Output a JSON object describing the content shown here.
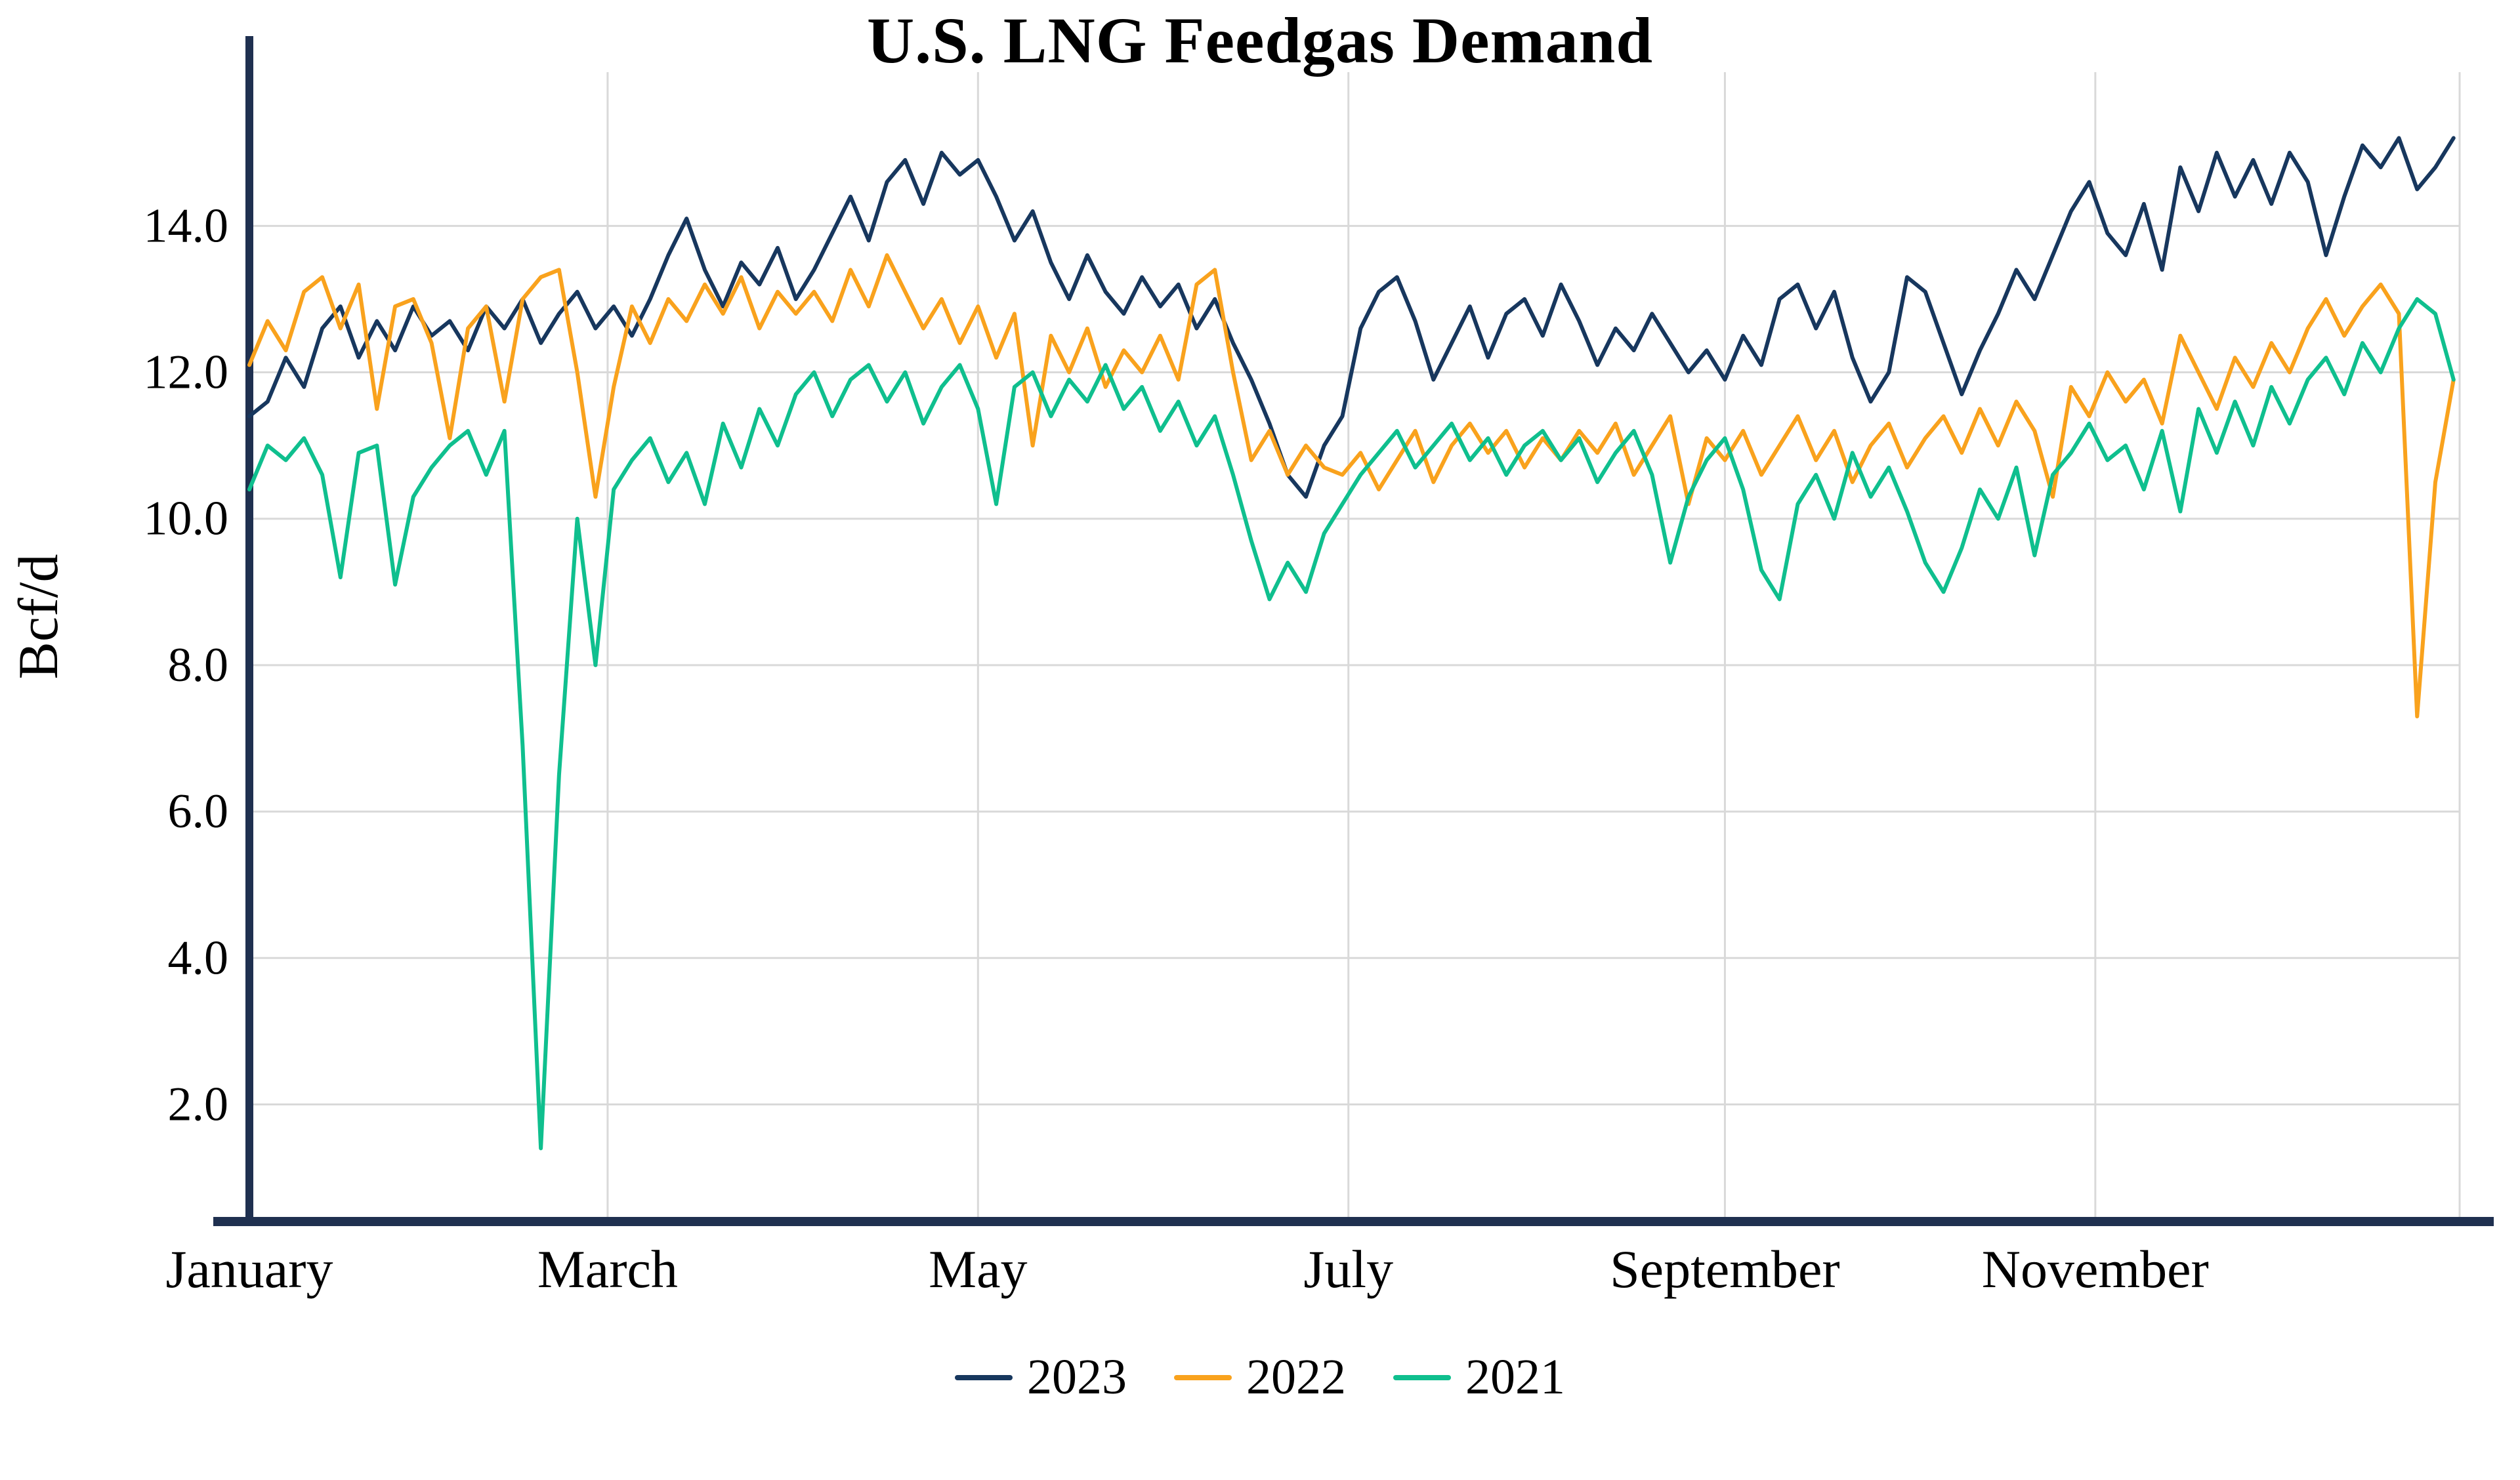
{
  "chart_data": {
    "type": "line",
    "title": "U.S. LNG Feedgas Demand",
    "xlabel": "",
    "ylabel": "Bcf/d",
    "x_unit": "day_of_year",
    "x_step_days": 3,
    "xlim_days": [
      0,
      364
    ],
    "ylim": [
      0.4,
      16.1
    ],
    "yticks": [
      2.0,
      4.0,
      6.0,
      8.0,
      10.0,
      12.0,
      14.0
    ],
    "ytick_labels": [
      "2.0",
      "4.0",
      "6.0",
      "8.0",
      "10.0",
      "12.0",
      "14.0"
    ],
    "x_month_ticks": [
      {
        "label": "January",
        "day": 0
      },
      {
        "label": "March",
        "day": 59
      },
      {
        "label": "May",
        "day": 120
      },
      {
        "label": "July",
        "day": 181
      },
      {
        "label": "September",
        "day": 243
      },
      {
        "label": "November",
        "day": 304
      }
    ],
    "x_gridline_days": [
      59,
      120,
      181,
      243,
      304,
      364
    ],
    "grid": true,
    "legend_position": "bottom",
    "axis_color": "#1f3050",
    "grid_color": "#d9d9d9",
    "series": [
      {
        "name": "2023",
        "color": "#17375e",
        "values": [
          11.4,
          11.6,
          12.2,
          11.8,
          12.6,
          12.9,
          12.2,
          12.7,
          12.3,
          12.9,
          12.5,
          12.7,
          12.3,
          12.9,
          12.6,
          13.0,
          12.4,
          12.8,
          13.1,
          12.6,
          12.9,
          12.5,
          13.0,
          13.6,
          14.1,
          13.4,
          12.9,
          13.5,
          13.2,
          13.7,
          13.0,
          13.4,
          13.9,
          14.4,
          13.8,
          14.6,
          14.9,
          14.3,
          15.0,
          14.7,
          14.9,
          14.4,
          13.8,
          14.2,
          13.5,
          13.0,
          13.6,
          13.1,
          12.8,
          13.3,
          12.9,
          13.2,
          12.6,
          13.0,
          12.4,
          11.9,
          11.3,
          10.6,
          10.3,
          11.0,
          11.4,
          12.6,
          13.1,
          13.3,
          12.7,
          11.9,
          12.4,
          12.9,
          12.2,
          12.8,
          13.0,
          12.5,
          13.2,
          12.7,
          12.1,
          12.6,
          12.3,
          12.8,
          12.4,
          12.0,
          12.3,
          11.9,
          12.5,
          12.1,
          13.0,
          13.2,
          12.6,
          13.1,
          12.2,
          11.6,
          12.0,
          13.3,
          13.1,
          12.4,
          11.7,
          12.3,
          12.8,
          13.4,
          13.0,
          13.6,
          14.2,
          14.6,
          13.9,
          13.6,
          14.3,
          13.4,
          14.8,
          14.2,
          15.0,
          14.4,
          14.9,
          14.3,
          15.0,
          14.6,
          13.6,
          14.4,
          15.1,
          14.8,
          15.2,
          14.5,
          14.8,
          15.2
        ]
      },
      {
        "name": "2022",
        "color": "#f9a21d",
        "values": [
          12.1,
          12.7,
          12.3,
          13.1,
          13.3,
          12.6,
          13.2,
          11.5,
          12.9,
          13.0,
          12.4,
          11.1,
          12.6,
          12.9,
          11.6,
          13.0,
          13.3,
          13.4,
          12.0,
          10.3,
          11.8,
          12.9,
          12.4,
          13.0,
          12.7,
          13.2,
          12.8,
          13.3,
          12.6,
          13.1,
          12.8,
          13.1,
          12.7,
          13.4,
          12.9,
          13.6,
          13.1,
          12.6,
          13.0,
          12.4,
          12.9,
          12.2,
          12.8,
          11.0,
          12.5,
          12.0,
          12.6,
          11.8,
          12.3,
          12.0,
          12.5,
          11.9,
          13.2,
          13.4,
          12.0,
          10.8,
          11.2,
          10.6,
          11.0,
          10.7,
          10.6,
          10.9,
          10.4,
          10.8,
          11.2,
          10.5,
          11.0,
          11.3,
          10.9,
          11.2,
          10.7,
          11.1,
          10.8,
          11.2,
          10.9,
          11.3,
          10.6,
          11.0,
          11.4,
          10.2,
          11.1,
          10.8,
          11.2,
          10.6,
          11.0,
          11.4,
          10.8,
          11.2,
          10.5,
          11.0,
          11.3,
          10.7,
          11.1,
          11.4,
          10.9,
          11.5,
          11.0,
          11.6,
          11.2,
          10.3,
          11.8,
          11.4,
          12.0,
          11.6,
          11.9,
          11.3,
          12.5,
          12.0,
          11.5,
          12.2,
          11.8,
          12.4,
          12.0,
          12.6,
          13.0,
          12.5,
          12.9,
          13.2,
          12.8,
          7.3,
          10.5,
          11.9
        ]
      },
      {
        "name": "2021",
        "color": "#0fbf8e",
        "values": [
          10.4,
          11.0,
          10.8,
          11.1,
          10.6,
          9.2,
          10.9,
          11.0,
          9.1,
          10.3,
          10.7,
          11.0,
          11.2,
          10.6,
          11.2,
          6.9,
          1.4,
          6.5,
          10.0,
          8.0,
          10.4,
          10.8,
          11.1,
          10.5,
          10.9,
          10.2,
          11.3,
          10.7,
          11.5,
          11.0,
          11.7,
          12.0,
          11.4,
          11.9,
          12.1,
          11.6,
          12.0,
          11.3,
          11.8,
          12.1,
          11.5,
          10.2,
          11.8,
          12.0,
          11.4,
          11.9,
          11.6,
          12.1,
          11.5,
          11.8,
          11.2,
          11.6,
          11.0,
          11.4,
          10.6,
          9.7,
          8.9,
          9.4,
          9.0,
          9.8,
          10.2,
          10.6,
          10.9,
          11.2,
          10.7,
          11.0,
          11.3,
          10.8,
          11.1,
          10.6,
          11.0,
          11.2,
          10.8,
          11.1,
          10.5,
          10.9,
          11.2,
          10.6,
          9.4,
          10.3,
          10.8,
          11.1,
          10.4,
          9.3,
          8.9,
          10.2,
          10.6,
          10.0,
          10.9,
          10.3,
          10.7,
          10.1,
          9.4,
          9.0,
          9.6,
          10.4,
          10.0,
          10.7,
          9.5,
          10.6,
          10.9,
          11.3,
          10.8,
          11.0,
          10.4,
          11.2,
          10.1,
          11.5,
          10.9,
          11.6,
          11.0,
          11.8,
          11.3,
          11.9,
          12.2,
          11.7,
          12.4,
          12.0,
          12.6,
          13.0,
          12.8,
          11.9
        ]
      }
    ]
  }
}
